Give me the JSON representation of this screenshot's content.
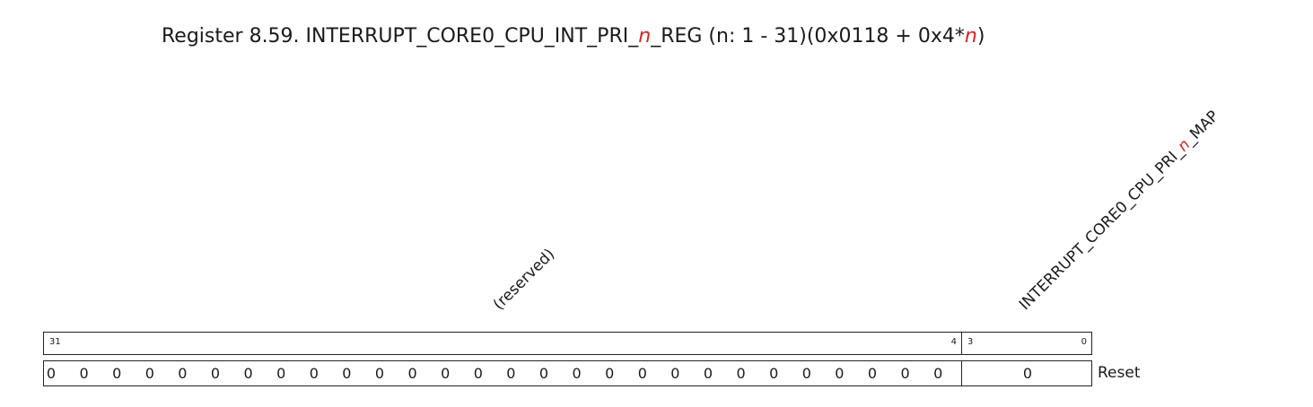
{
  "title": {
    "prefix": "Register 8.59. INTERRUPT_CORE0_CPU_INT_PRI_",
    "var1": "n",
    "middle": "_REG (n: 1 - 31)(0x0118 + 0x4*",
    "var2": "n",
    "suffix": ")"
  },
  "fields": [
    {
      "label": "(reserved)",
      "bit_high": "31",
      "bit_low": "4",
      "reset_values": [
        "0",
        "0",
        "0",
        "0",
        "0",
        "0",
        "0",
        "0",
        "0",
        "0",
        "0",
        "0",
        "0",
        "0",
        "0",
        "0",
        "0",
        "0",
        "0",
        "0",
        "0",
        "0",
        "0",
        "0",
        "0",
        "0",
        "0",
        "0"
      ]
    },
    {
      "label_prefix": "INTERRUPT_CORE0_CPU_PRI_",
      "label_var": "n",
      "label_suffix": "_MAP",
      "bit_high": "3",
      "bit_low": "0",
      "reset_value": "0"
    }
  ],
  "reset_label": "Reset",
  "colors": {
    "variable": "#e0201b",
    "border": "#222222"
  }
}
